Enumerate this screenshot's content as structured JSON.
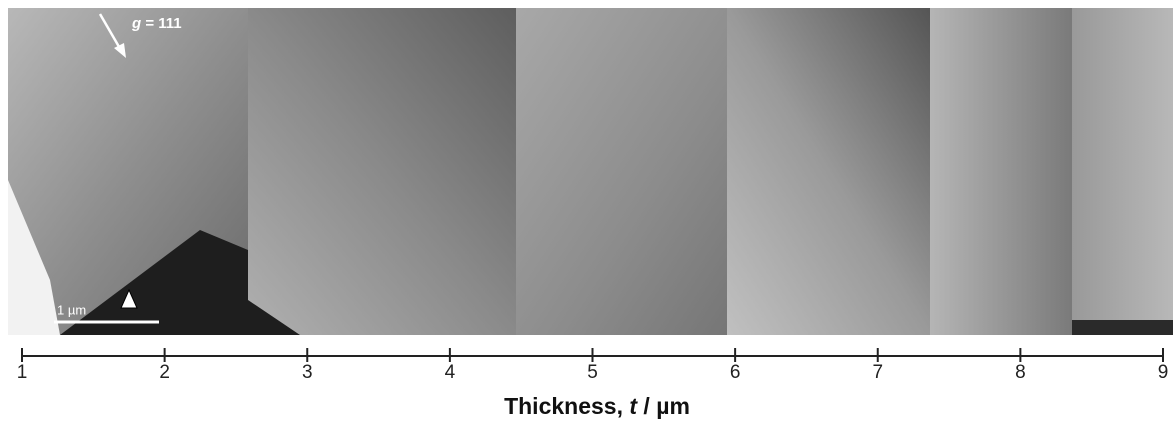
{
  "chart_data": {
    "type": "micrograph-strip",
    "xlabel": [
      "Thickness, ",
      "t",
      " / µm"
    ],
    "xlim": [
      1,
      9
    ],
    "xticks": [
      1,
      2,
      3,
      4,
      5,
      6,
      7,
      8,
      9
    ],
    "annotations": {
      "diffraction_vector": [
        "g",
        " = 111"
      ],
      "scale_bar": "1 µm"
    }
  }
}
